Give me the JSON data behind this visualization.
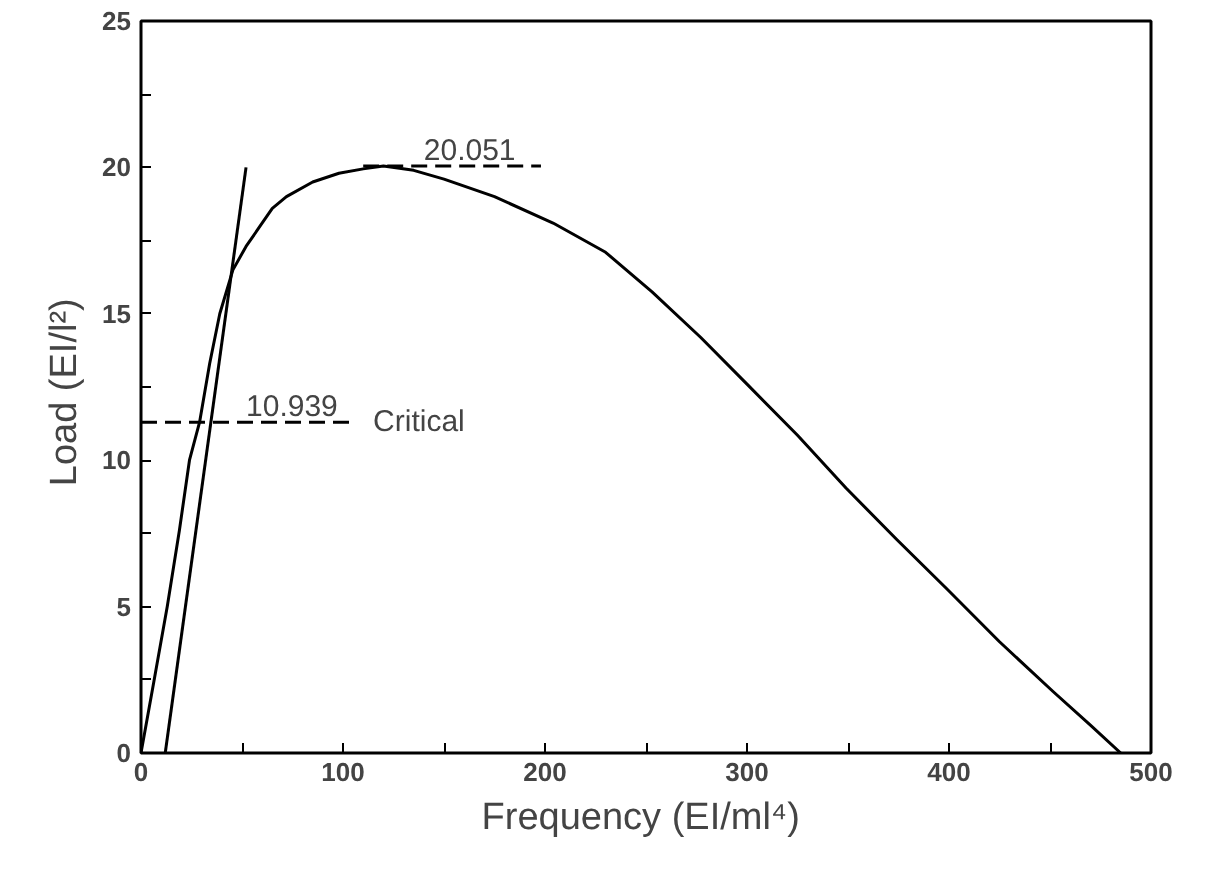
{
  "chart_data": {
    "type": "line",
    "xlabel": "Frequency  (EI/ml⁴)",
    "ylabel": "Load  (EI/l²)",
    "xlim": [
      0,
      500
    ],
    "ylim": [
      0,
      25
    ],
    "xticks": [
      0,
      {
        "value": 50,
        "label": null
      },
      100,
      {
        "value": 150,
        "label": null
      },
      200,
      {
        "value": 250,
        "label": null
      },
      300,
      {
        "value": 350,
        "label": null
      },
      400,
      {
        "value": 450,
        "label": null
      },
      500
    ],
    "yticks": [
      0,
      {
        "value": 2.5,
        "label": null
      },
      5,
      {
        "value": 7.5,
        "label": null
      },
      10,
      {
        "value": 12.5,
        "label": null
      },
      15,
      {
        "value": 17.5,
        "label": null
      },
      20,
      {
        "value": 22.5,
        "label": null
      },
      25
    ],
    "grid": false,
    "marker": "none",
    "series": [
      {
        "color": "#000000",
        "line_style": "solid",
        "x": [
          0,
          6,
          13,
          19,
          24,
          29,
          34,
          39,
          45.5,
          52,
          59,
          65,
          72,
          85,
          98,
          110,
          120,
          135,
          150,
          175,
          204,
          230,
          253,
          277,
          300,
          325,
          349,
          374,
          399,
          425,
          451.5,
          470,
          485
        ],
        "values": [
          0,
          2.3,
          5,
          7.6,
          10,
          11.3,
          13.3,
          15,
          16.5,
          17.3,
          18,
          18.6,
          19,
          19.5,
          19.8,
          19.95,
          20.05,
          19.9,
          19.6,
          19,
          18.1,
          17.1,
          15.75,
          14.2,
          12.6,
          10.85,
          9.05,
          7.3,
          5.6,
          3.8,
          2.1,
          0.95,
          0
        ]
      },
      {
        "color": "#000000",
        "line_style": "solid",
        "x": [
          12,
          52
        ],
        "values": [
          0,
          20
        ]
      },
      {
        "color": "#000000",
        "line_style": "dashed",
        "x": [
          0,
          103
        ],
        "values": [
          11.3,
          11.3
        ]
      },
      {
        "color": "#000000",
        "line_style": "dashed",
        "x": [
          110,
          198
        ],
        "values": [
          20.05,
          20.05
        ]
      }
    ],
    "annotations": [
      {
        "text": "10.939",
        "x": 52,
        "y": 11.3
      },
      "Critical",
      {
        "text": "20.051",
        "x": 140,
        "y": 20.05
      }
    ]
  }
}
